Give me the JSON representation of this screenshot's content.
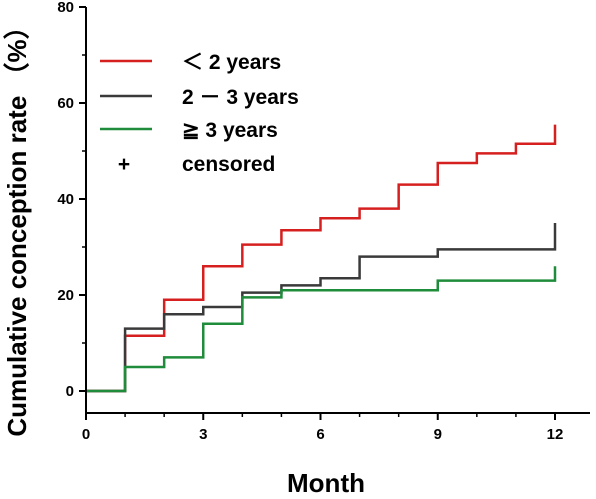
{
  "chart_data": {
    "type": "line",
    "subtype": "kaplan-meier-step",
    "xlabel": "Month",
    "ylabel": "Cumulative conception rate （%）",
    "xlim": [
      0,
      12
    ],
    "ylim": [
      0,
      80
    ],
    "x_ticks": [
      "0",
      "3",
      "6",
      "9",
      "12"
    ],
    "x_tick_values": [
      0,
      3,
      6,
      9,
      12
    ],
    "y_ticks": [
      "0",
      "20",
      "40",
      "60",
      "80"
    ],
    "y_tick_values": [
      0,
      20,
      40,
      60,
      80
    ],
    "grid": false,
    "legend_position": "top-left",
    "censored_marker_label": "censored",
    "censored_symbol": "+",
    "series": [
      {
        "name": "＜  2 years",
        "color": "#d62020",
        "x": [
          0,
          1,
          2,
          3,
          4,
          5,
          6,
          7,
          8,
          9,
          10,
          11,
          12
        ],
        "y": [
          0,
          11.5,
          19.0,
          26.0,
          30.5,
          33.5,
          36.0,
          38.0,
          43.0,
          47.5,
          49.5,
          51.5,
          55.5
        ]
      },
      {
        "name": "2 － 3 years",
        "color": "#3a3a3a",
        "x": [
          0,
          1,
          2,
          3,
          4,
          5,
          6,
          7,
          9,
          12
        ],
        "y": [
          0,
          13.0,
          16.0,
          17.5,
          20.5,
          22.0,
          23.5,
          28.0,
          29.5,
          35.0
        ]
      },
      {
        "name": "≧ 3 years",
        "color": "#1e8c3a",
        "x": [
          0,
          1,
          2,
          3,
          4,
          5,
          9,
          12
        ],
        "y": [
          0,
          5.0,
          7.0,
          14.0,
          19.5,
          21.0,
          23.0,
          26.0
        ]
      }
    ]
  }
}
